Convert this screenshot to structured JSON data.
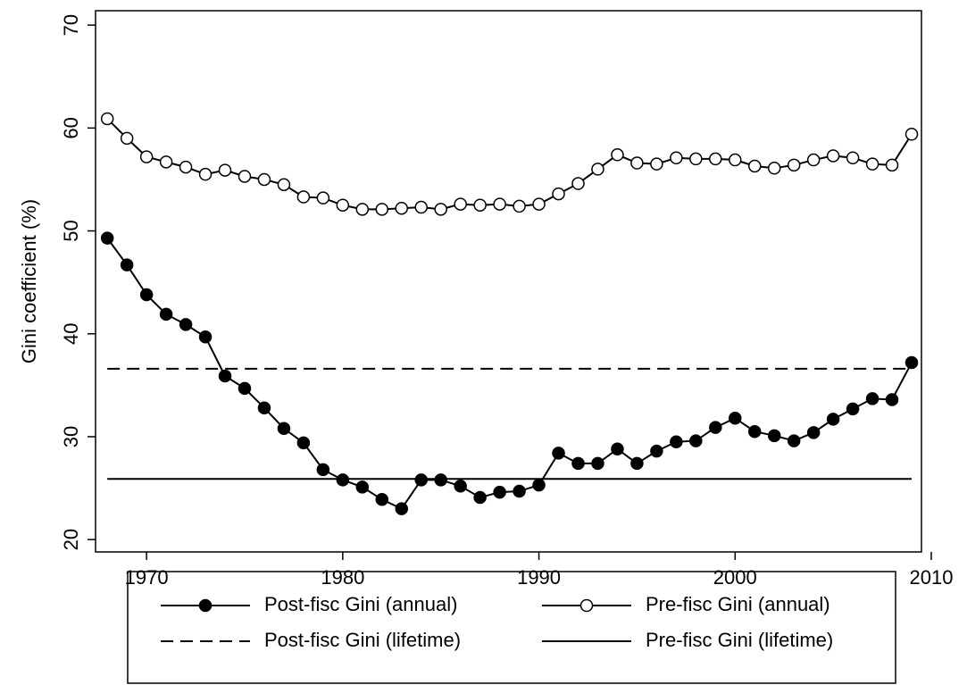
{
  "chart_data": {
    "type": "line",
    "y_label": "Gini coefficient (%)",
    "x": [
      1968,
      1969,
      1970,
      1971,
      1972,
      1973,
      1974,
      1975,
      1976,
      1977,
      1978,
      1979,
      1980,
      1981,
      1982,
      1983,
      1984,
      1985,
      1986,
      1987,
      1988,
      1989,
      1990,
      1991,
      1992,
      1993,
      1994,
      1995,
      1996,
      1997,
      1998,
      1999,
      2000,
      2001,
      2002,
      2003,
      2004,
      2005,
      2006,
      2007,
      2008,
      2009
    ],
    "series": [
      {
        "name": "Post-fisc Gini (annual)",
        "color": "#000000",
        "marker": "filled",
        "dash": "solid",
        "values": [
          49.3,
          46.7,
          43.8,
          41.9,
          40.9,
          39.7,
          35.9,
          34.7,
          32.8,
          30.8,
          29.4,
          26.8,
          25.8,
          25.1,
          23.9,
          23.0,
          25.8,
          25.8,
          25.2,
          24.1,
          24.6,
          24.7,
          25.3,
          28.4,
          27.4,
          27.4,
          28.8,
          27.4,
          28.6,
          29.5,
          29.6,
          30.9,
          31.8,
          30.5,
          30.1,
          29.6,
          30.4,
          31.7,
          32.7,
          33.7,
          33.6,
          37.2
        ]
      },
      {
        "name": "Pre-fisc Gini (annual)",
        "color": "#000000",
        "marker": "open",
        "dash": "solid",
        "values": [
          60.9,
          59.0,
          57.2,
          56.7,
          56.2,
          55.5,
          55.9,
          55.3,
          55.0,
          54.5,
          53.3,
          53.2,
          52.5,
          52.1,
          52.1,
          52.2,
          52.3,
          52.1,
          52.6,
          52.5,
          52.6,
          52.4,
          52.6,
          53.6,
          54.6,
          56.0,
          57.4,
          56.6,
          56.5,
          57.1,
          57.0,
          57.0,
          56.9,
          56.3,
          56.1,
          56.4,
          56.9,
          57.3,
          57.1,
          56.5,
          56.4,
          59.4
        ]
      },
      {
        "name": "Post-fisc Gini (lifetime)",
        "color": "#000000",
        "marker": null,
        "dash": "dashed",
        "x": [
          1968,
          2009
        ],
        "values": [
          36.6,
          36.6
        ]
      },
      {
        "name": "Pre-fisc Gini (lifetime)",
        "color": "#000000",
        "marker": null,
        "dash": "solid",
        "x": [
          1968,
          2009
        ],
        "values": [
          25.9,
          25.9
        ]
      }
    ],
    "xlim": [
      1967.4,
      2009.5
    ],
    "xticks": [
      1970,
      1980,
      1990,
      2000,
      2010
    ],
    "ylim": [
      18.8,
      71.4
    ],
    "yticks": [
      20,
      30,
      40,
      50,
      60,
      70
    ],
    "legend": "bottom"
  }
}
